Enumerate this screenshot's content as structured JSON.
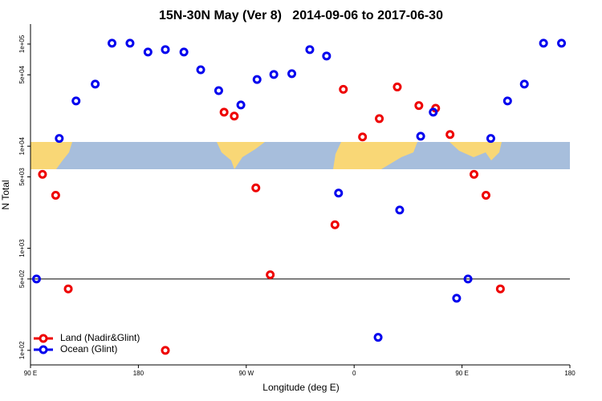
{
  "chart_data": {
    "type": "scatter",
    "title": "15N-30N May (Ver 8)   2014-09-06 to 2017-06-30",
    "x_label": "Longitude (deg E)",
    "y_label": "N Total",
    "log_y": true,
    "xlim": [
      90,
      540
    ],
    "ylim": [
      72,
      157000
    ],
    "xticks": [
      {
        "value": 90,
        "label": "90 E"
      },
      180,
      {
        "value": 270,
        "label": "90 W"
      },
      {
        "value": 360,
        "label": "0"
      },
      {
        "value": 450,
        "label": "90 E"
      },
      {
        "value": 540,
        "label": "180"
      }
    ],
    "yticks": [
      {
        "value": 100,
        "label": "1e+02"
      },
      {
        "value": 500,
        "label": "5e+02"
      },
      {
        "value": 1000,
        "label": "1e+03"
      },
      {
        "value": 5000,
        "label": "5e+03"
      },
      {
        "value": 10000,
        "label": "1e+04"
      },
      {
        "value": 50000,
        "label": "5e+04"
      },
      {
        "value": 100000,
        "label": "1e+05"
      }
    ],
    "hline": 500,
    "legend": "bottom-left",
    "series": [
      {
        "name": "Land (Nadir&Glint)",
        "color": "#ee0000",
        "x": [
          100,
          111,
          121.5,
          202.5,
          251.5,
          260,
          278,
          290,
          344,
          351,
          367,
          381,
          396,
          414,
          428,
          440,
          460,
          470,
          482
        ],
        "values": [
          5300,
          3300,
          400,
          100,
          21500,
          19700,
          3900,
          550,
          1700,
          36000,
          12300,
          18600,
          38000,
          25000,
          23500,
          13000,
          5300,
          3300,
          400
        ]
      },
      {
        "name": "Ocean (Glint)",
        "color": "#0000ee",
        "x": [
          95,
          114,
          128,
          144,
          158,
          173,
          188,
          202.5,
          218,
          232,
          247,
          265.5,
          279,
          293,
          308,
          323,
          337,
          347,
          380,
          398,
          415.5,
          426,
          445.5,
          455,
          474,
          488,
          502,
          518,
          533
        ],
        "values": [
          500,
          11900,
          27700,
          40500,
          102000,
          102000,
          83600,
          88300,
          83600,
          56000,
          35000,
          25300,
          45000,
          50400,
          51300,
          88300,
          76400,
          3470,
          134,
          2370,
          12500,
          21500,
          324,
          500,
          11900,
          27700,
          40500,
          102000,
          102000
        ]
      }
    ]
  }
}
